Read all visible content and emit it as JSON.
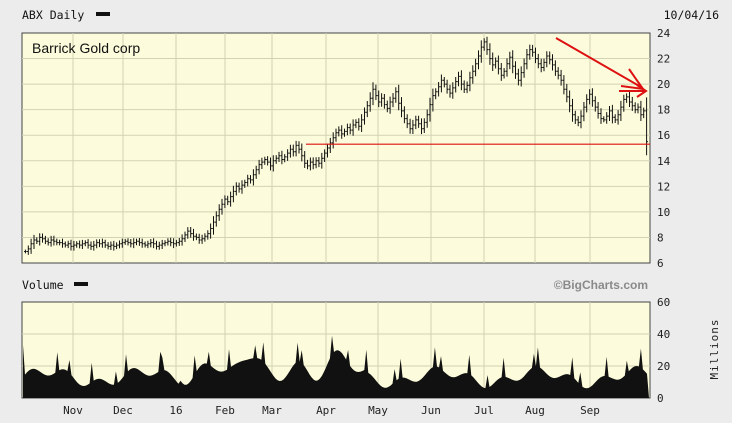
{
  "header": {
    "symbol_label": "ABX Daily",
    "date": "10/04/16"
  },
  "volume_header": {
    "label": "Volume",
    "brand": "©BigCharts.com"
  },
  "annotation": "Barrick Gold corp",
  "colors": {
    "panel_bg": "#fcfcdc",
    "grid": "#d2d2b4",
    "page_bg": "#ececec",
    "annotation_red": "#dd1111"
  },
  "chart_data": [
    {
      "type": "line",
      "title": "ABX Daily",
      "ylim": [
        6,
        24
      ],
      "y_ticks": [
        "6",
        "8",
        "10",
        "12",
        "14",
        "16",
        "18",
        "20",
        "22",
        "24"
      ],
      "x_ticks": [
        "Nov",
        "Dec",
        "16",
        "Feb",
        "Mar",
        "Apr",
        "May",
        "Jun",
        "Jul",
        "Aug",
        "Sep"
      ],
      "grid": true,
      "series": [
        {
          "values": [
            6.9,
            7.1,
            7.5,
            7.8,
            7.7,
            8.0,
            7.9,
            7.7,
            7.6,
            7.8,
            7.7,
            7.6,
            7.6,
            7.5,
            7.4,
            7.5,
            7.3,
            7.4,
            7.5,
            7.4,
            7.5,
            7.6,
            7.4,
            7.3,
            7.4,
            7.6,
            7.5,
            7.6,
            7.4,
            7.3,
            7.4,
            7.3,
            7.4,
            7.5,
            7.6,
            7.7,
            7.6,
            7.5,
            7.6,
            7.7,
            7.6,
            7.5,
            7.4,
            7.5,
            7.6,
            7.5,
            7.3,
            7.4,
            7.5,
            7.6,
            7.7,
            7.6,
            7.5,
            7.6,
            7.7,
            7.9,
            8.2,
            8.5,
            8.3,
            8.1,
            8.0,
            7.8,
            7.9,
            8.1,
            8.3,
            8.7,
            9.2,
            9.7,
            10.2,
            10.6,
            11.0,
            10.8,
            11.2,
            11.6,
            12.0,
            11.8,
            12.1,
            12.3,
            12.6,
            12.5,
            12.9,
            13.3,
            13.7,
            13.9,
            14.1,
            13.9,
            13.6,
            14.0,
            14.2,
            14.4,
            14.1,
            14.3,
            14.6,
            14.9,
            14.7,
            15.2,
            14.9,
            14.4,
            13.8,
            13.6,
            13.9,
            13.7,
            14.0,
            13.8,
            14.2,
            14.6,
            15.0,
            15.4,
            15.8,
            16.2,
            16.4,
            16.1,
            16.3,
            16.6,
            16.4,
            16.8,
            17.0,
            16.7,
            17.2,
            17.8,
            18.3,
            18.9,
            19.6,
            19.1,
            18.6,
            18.9,
            18.4,
            18.1,
            18.6,
            18.9,
            19.4,
            18.5,
            17.9,
            17.3,
            16.9,
            16.5,
            16.8,
            17.2,
            16.9,
            16.5,
            17.0,
            17.6,
            18.4,
            19.1,
            19.4,
            19.8,
            20.3,
            20.0,
            19.6,
            19.3,
            19.7,
            20.2,
            20.6,
            20.0,
            19.6,
            19.9,
            20.5,
            21.0,
            21.6,
            22.2,
            22.9,
            23.3,
            22.7,
            22.0,
            21.5,
            21.8,
            21.2,
            20.7,
            21.0,
            21.6,
            22.1,
            21.4,
            20.8,
            20.3,
            20.9,
            21.6,
            22.3,
            22.7,
            22.5,
            22.0,
            21.6,
            21.3,
            21.7,
            22.2,
            21.9,
            21.5,
            21.0,
            20.7,
            20.3,
            19.6,
            19.0,
            18.3,
            17.6,
            17.2,
            17.0,
            17.5,
            18.2,
            18.8,
            19.2,
            18.7,
            18.2,
            17.7,
            17.3,
            17.2,
            17.5,
            17.9,
            17.4,
            17.2,
            17.6,
            18.2,
            18.8,
            19.0,
            18.6,
            18.3,
            18.0,
            18.2,
            17.6,
            17.9,
            15.5
          ]
        }
      ],
      "annotations": [
        "support line at 15.3"
      ]
    },
    {
      "type": "bar",
      "title": "Volume",
      "ylabel": "Millions",
      "ylim": [
        0,
        60
      ],
      "y_ticks": [
        "0",
        "20",
        "40",
        "60"
      ],
      "grid": true
    }
  ]
}
